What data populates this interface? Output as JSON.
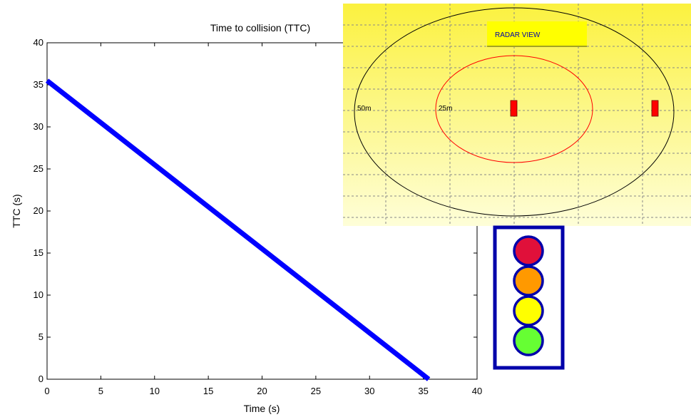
{
  "chart_data": {
    "type": "line",
    "title": "Time to collision (TTC)",
    "xlabel": "Time (s)",
    "ylabel": "TTC (s)",
    "xlim": [
      0,
      40
    ],
    "ylim": [
      0,
      40
    ],
    "xticks": [
      0,
      5,
      10,
      15,
      20,
      25,
      30,
      35,
      40
    ],
    "yticks": [
      0,
      5,
      10,
      15,
      20,
      25,
      30,
      35,
      40
    ],
    "grid": false,
    "series": [
      {
        "color": "#0000ff",
        "x": [
          0,
          35.5
        ],
        "y": [
          35.5,
          0
        ]
      }
    ]
  },
  "radar": {
    "title": "RADAR VIEW",
    "outer_label": "50m",
    "inner_label": "25m",
    "bg_color": "#fbf25a",
    "outer_ring_color": "#000000",
    "inner_ring_color": "#ff0000",
    "target_color": "#ff0000"
  },
  "traffic_light": {
    "frame_color": "#0000aa",
    "lights": [
      {
        "name": "red",
        "color": "#e0103a"
      },
      {
        "name": "orange",
        "color": "#ff9900"
      },
      {
        "name": "yellow",
        "color": "#ffff00"
      },
      {
        "name": "green",
        "color": "#66ff33"
      }
    ]
  }
}
